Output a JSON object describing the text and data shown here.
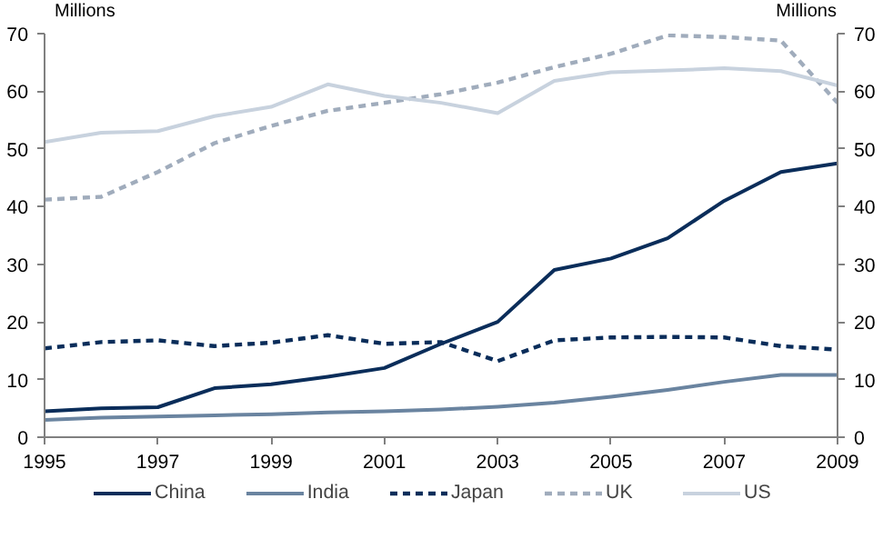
{
  "chart_data": {
    "type": "line",
    "ylabel": "Millions",
    "y2label": "Millions",
    "x": [
      1995,
      1996,
      1997,
      1998,
      1999,
      2000,
      2001,
      2002,
      2003,
      2004,
      2005,
      2006,
      2007,
      2008,
      2009
    ],
    "series": [
      {
        "name": "China",
        "color": "#0a2d5a",
        "line_style": "solid",
        "values": [
          4.5,
          5,
          5.2,
          8.5,
          9.2,
          10.5,
          12,
          16.2,
          20,
          29,
          31,
          34.5,
          41,
          46,
          47.5
        ]
      },
      {
        "name": "India",
        "color": "#6a84a0",
        "line_style": "solid",
        "values": [
          3,
          3.4,
          3.6,
          3.8,
          4,
          4.3,
          4.5,
          4.8,
          5.3,
          6,
          7,
          8.2,
          9.6,
          10.8,
          10.8
        ]
      },
      {
        "name": "Japan",
        "color": "#0a2d5a",
        "line_style": "dashed",
        "values": [
          15.4,
          16.5,
          16.8,
          15.8,
          16.4,
          17.7,
          16.2,
          16.5,
          13.2,
          16.8,
          17.3,
          17.4,
          17.3,
          15.8,
          15.2
        ]
      },
      {
        "name": "UK",
        "color": "#a0acbc",
        "line_style": "dashed",
        "values": [
          41.2,
          41.7,
          46,
          51,
          54,
          56.6,
          58,
          59.5,
          61.5,
          64.2,
          66.5,
          69.7,
          69.4,
          68.8,
          58
        ]
      },
      {
        "name": "US",
        "color": "#c8d2de",
        "line_style": "solid",
        "values": [
          51.2,
          52.8,
          53.1,
          55.7,
          57.3,
          61.2,
          59.2,
          58,
          56.2,
          61.8,
          63.3,
          63.6,
          64,
          63.5,
          61
        ]
      }
    ],
    "xlim": [
      1995,
      2009
    ],
    "xticks": [
      1995,
      1997,
      1999,
      2001,
      2003,
      2005,
      2007,
      2009
    ],
    "ylim": [
      0,
      70
    ],
    "yticks": [
      0,
      10,
      20,
      30,
      40,
      50,
      60,
      70
    ],
    "y2lim": [
      0,
      70
    ],
    "y2ticks": [
      0,
      10,
      20,
      30,
      40,
      50,
      60,
      70
    ],
    "grid": false,
    "legend": "bottom",
    "marker": "none"
  }
}
